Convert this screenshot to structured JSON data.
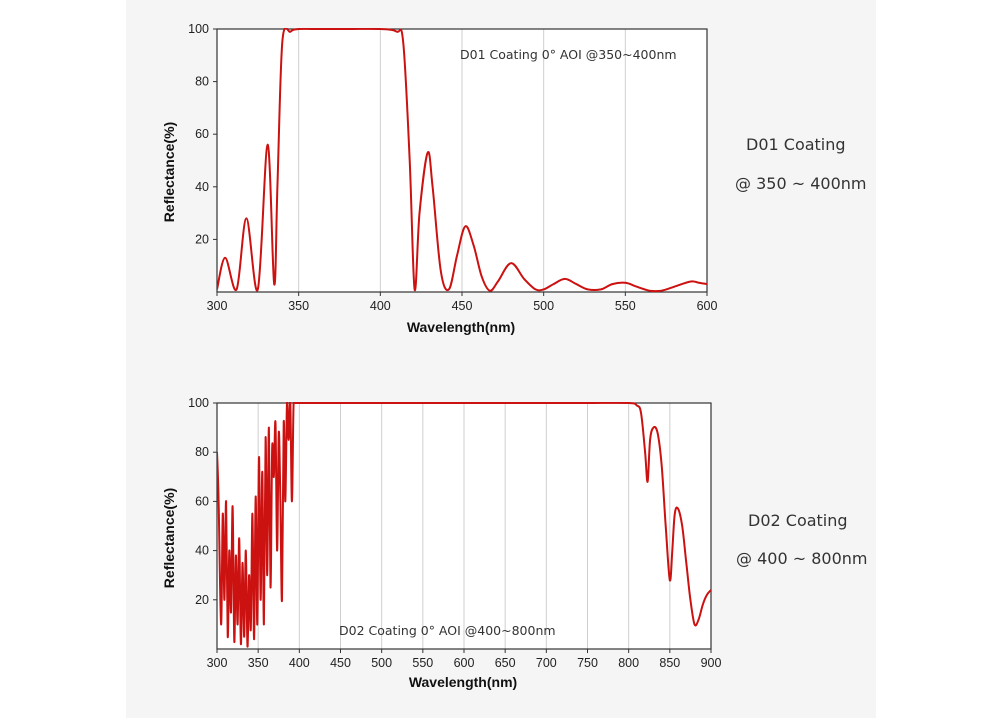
{
  "side_labels": {
    "d01_title": "D01 Coating",
    "d01_range": "@ 350 ~ 400nm",
    "d02_title": "D02 Coating",
    "d02_range": "@ 400 ~ 800nm"
  },
  "colors": {
    "curve": "#cc1111",
    "panel_bg": "#f5f5f6",
    "grid": "#cfcfcf"
  },
  "chart_data": [
    {
      "type": "line",
      "annotation": "D01 Coating  0°  AOI @350~400nm",
      "xlabel": "Wavelength(nm)",
      "ylabel": "Reflectance(%)",
      "xlim": [
        300,
        600
      ],
      "ylim": [
        0,
        100
      ],
      "xticks": [
        300,
        350,
        400,
        450,
        500,
        550,
        600
      ],
      "yticks": [
        20,
        40,
        60,
        80,
        100
      ],
      "grid": "vertical",
      "series": [
        {
          "x": [
            300,
            305,
            312,
            318,
            325,
            331,
            335,
            337,
            340,
            345,
            350,
            360,
            380,
            400,
            410,
            414,
            418,
            421,
            424,
            429,
            432,
            437,
            442,
            447,
            452,
            457,
            462,
            467,
            472,
            480,
            488,
            495,
            500,
            506,
            513,
            520,
            527,
            535,
            542,
            550,
            557,
            565,
            572,
            580,
            590,
            595,
            600
          ],
          "y": [
            1,
            13,
            1,
            28,
            1,
            56,
            3,
            40,
            95,
            99,
            100,
            100,
            100,
            100,
            99,
            95,
            50,
            1,
            30,
            53,
            40,
            8,
            1,
            14,
            25,
            18,
            6,
            0.5,
            4,
            11,
            5,
            1,
            1,
            3,
            5,
            3,
            1,
            1,
            3,
            3.5,
            2,
            0.5,
            0.5,
            2,
            4,
            3.5,
            3
          ]
        }
      ]
    },
    {
      "type": "line",
      "annotation": "D02 Coating  0°  AOI @400~800nm",
      "xlabel": "Wavelength(nm)",
      "ylabel": "Reflectance(%)",
      "xlim": [
        300,
        900
      ],
      "ylim": [
        0,
        100
      ],
      "xticks": [
        300,
        350,
        400,
        450,
        500,
        550,
        600,
        650,
        700,
        750,
        800,
        850,
        900
      ],
      "yticks": [
        20,
        40,
        60,
        80,
        100
      ],
      "grid": "vertical",
      "series": [
        {
          "x": [
            300,
            302,
            305,
            307,
            309,
            311,
            313,
            315,
            317,
            319,
            321,
            323,
            325,
            327,
            329,
            331,
            333,
            335,
            337,
            339,
            341,
            343,
            345,
            347,
            349,
            351,
            353,
            355,
            357,
            359,
            361,
            363,
            365,
            367,
            369,
            371,
            373,
            375,
            377,
            379,
            381,
            383,
            385,
            387,
            389,
            391,
            393,
            395,
            400,
            450,
            500,
            550,
            600,
            650,
            700,
            750,
            800,
            810,
            815,
            820,
            823,
            826,
            830,
            835,
            840,
            845,
            850,
            853,
            856,
            860,
            865,
            870,
            875,
            880,
            885,
            890,
            895,
            900
          ],
          "y": [
            80,
            60,
            10,
            55,
            20,
            60,
            5,
            40,
            15,
            58,
            3,
            38,
            10,
            45,
            2,
            35,
            5,
            40,
            1,
            30,
            8,
            55,
            4,
            62,
            10,
            78,
            20,
            72,
            10,
            86,
            30,
            90,
            25,
            82,
            70,
            92,
            40,
            88,
            60,
            20,
            92,
            60,
            100,
            85,
            100,
            60,
            100,
            100,
            100,
            100,
            100,
            100,
            100,
            100,
            100,
            100,
            100,
            99,
            96,
            80,
            68,
            85,
            90,
            88,
            75,
            50,
            28,
            40,
            55,
            57,
            50,
            35,
            20,
            10,
            12,
            18,
            22,
            24
          ]
        }
      ]
    }
  ]
}
